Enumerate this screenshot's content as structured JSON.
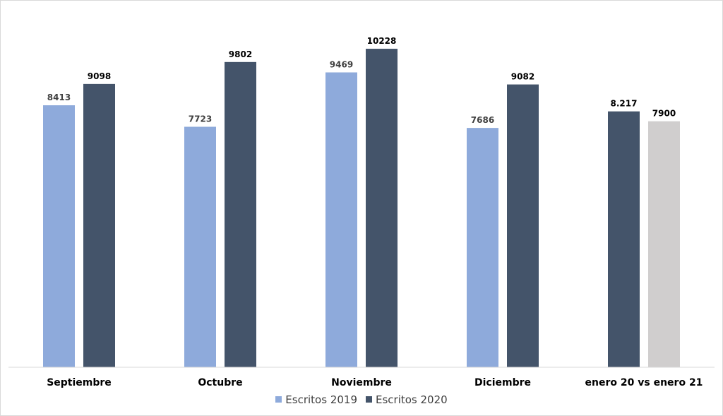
{
  "chart_data": {
    "type": "bar",
    "categories": [
      "Septiembre",
      "Octubre",
      "Noviembre",
      "Diciembre",
      "enero 20 vs enero 21"
    ],
    "series": [
      {
        "name": "Escritos 2019",
        "color": "#8eaadb"
      },
      {
        "name": "Escritos 2020",
        "color": "#44546a"
      }
    ],
    "groups": [
      {
        "bars": [
          {
            "value": 8413,
            "label": "8413",
            "color": "#8eaadb"
          },
          {
            "value": 9098,
            "label": "9098",
            "color": "#44546a"
          }
        ]
      },
      {
        "bars": [
          {
            "value": 7723,
            "label": "7723",
            "color": "#8eaadb"
          },
          {
            "value": 9802,
            "label": "9802",
            "color": "#44546a"
          }
        ]
      },
      {
        "bars": [
          {
            "value": 9469,
            "label": "9469",
            "color": "#8eaadb"
          },
          {
            "value": 10228,
            "label": "10228",
            "color": "#44546a"
          }
        ]
      },
      {
        "bars": [
          {
            "value": 7686,
            "label": "7686",
            "color": "#8eaadb"
          },
          {
            "value": 9082,
            "label": "9082",
            "color": "#44546a"
          }
        ]
      },
      {
        "bars": [
          {
            "value": 8217,
            "label": "8.217",
            "color": "#44546a"
          },
          {
            "value": 7900,
            "label": "7900",
            "color": "#d0cece"
          }
        ]
      }
    ],
    "ylim": [
      0,
      11000
    ],
    "grid": false,
    "legend": "bottom"
  }
}
